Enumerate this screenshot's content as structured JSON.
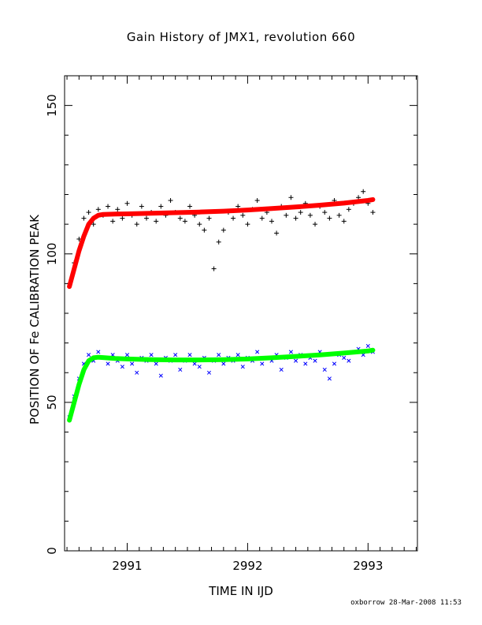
{
  "footer": "oxborrow 28-Mar-2008 11:53",
  "chart_data": {
    "type": "scatter",
    "title": "Gain History of JMX1, revolution 660",
    "xlabel": "TIME IN IJD",
    "ylabel": "POSITION OF Fe CALIBRATION PEAK",
    "xlim": [
      2990.48,
      2993.41
    ],
    "ylim": [
      0,
      160
    ],
    "xticks": [
      2991,
      2992,
      2993
    ],
    "yticks": [
      0,
      50,
      100,
      150
    ],
    "grid": false,
    "series": [
      {
        "marker": "plus",
        "color": "#000000",
        "x": [
          2990.52,
          2990.56,
          2990.6,
          2990.64,
          2990.68,
          2990.72,
          2990.76,
          2990.8,
          2990.84,
          2990.88,
          2990.92,
          2990.96,
          2991.0,
          2991.04,
          2991.08,
          2991.12,
          2991.16,
          2991.2,
          2991.24,
          2991.28,
          2991.32,
          2991.36,
          2991.4,
          2991.44,
          2991.48,
          2991.52,
          2991.56,
          2991.6,
          2991.64,
          2991.68,
          2991.72,
          2991.76,
          2991.8,
          2991.84,
          2991.88,
          2991.92,
          2991.96,
          2992.0,
          2992.04,
          2992.08,
          2992.12,
          2992.16,
          2992.2,
          2992.24,
          2992.28,
          2992.32,
          2992.36,
          2992.4,
          2992.44,
          2992.48,
          2992.52,
          2992.56,
          2992.6,
          2992.64,
          2992.68,
          2992.72,
          2992.76,
          2992.8,
          2992.84,
          2992.88,
          2992.92,
          2992.96,
          2993.0,
          2993.04
        ],
        "y": [
          90,
          97,
          105,
          112,
          114,
          110,
          115,
          113,
          116,
          111,
          115,
          112,
          117,
          113,
          110,
          116,
          112,
          114,
          111,
          116,
          113,
          118,
          114,
          112,
          111,
          116,
          113,
          110,
          108,
          112,
          95,
          104,
          108,
          114,
          112,
          116,
          113,
          110,
          115,
          118,
          112,
          114,
          111,
          107,
          116,
          113,
          119,
          112,
          114,
          117,
          113,
          110,
          116,
          114,
          112,
          118,
          113,
          111,
          115,
          117,
          119,
          121,
          117,
          114
        ]
      },
      {
        "marker": "cross",
        "color": "#0000ff",
        "x": [
          2990.52,
          2990.56,
          2990.6,
          2990.64,
          2990.68,
          2990.72,
          2990.76,
          2990.8,
          2990.84,
          2990.88,
          2990.92,
          2990.96,
          2991.0,
          2991.04,
          2991.08,
          2991.12,
          2991.16,
          2991.2,
          2991.24,
          2991.28,
          2991.32,
          2991.36,
          2991.4,
          2991.44,
          2991.48,
          2991.52,
          2991.56,
          2991.6,
          2991.64,
          2991.68,
          2991.72,
          2991.76,
          2991.8,
          2991.84,
          2991.88,
          2991.92,
          2991.96,
          2992.0,
          2992.04,
          2992.08,
          2992.12,
          2992.16,
          2992.2,
          2992.24,
          2992.28,
          2992.32,
          2992.36,
          2992.4,
          2992.44,
          2992.48,
          2992.52,
          2992.56,
          2992.6,
          2992.64,
          2992.68,
          2992.72,
          2992.76,
          2992.8,
          2992.84,
          2992.88,
          2992.92,
          2992.96,
          2993.0,
          2993.04
        ],
        "y": [
          45,
          52,
          58,
          63,
          66,
          64,
          67,
          65,
          63,
          66,
          64,
          62,
          66,
          63,
          60,
          65,
          64,
          66,
          63,
          59,
          65,
          64,
          66,
          61,
          64,
          66,
          63,
          62,
          65,
          60,
          64,
          66,
          63,
          65,
          64,
          66,
          62,
          65,
          64,
          67,
          63,
          65,
          64,
          66,
          61,
          65,
          67,
          64,
          66,
          63,
          65,
          64,
          67,
          61,
          58,
          63,
          66,
          65,
          64,
          67,
          68,
          66,
          69,
          67
        ]
      },
      {
        "name": "",
        "type": "line",
        "color": "#ff0000",
        "x": [
          2990.52,
          2990.56,
          2990.6,
          2990.64,
          2990.68,
          2990.72,
          2990.76,
          2990.8,
          2990.9,
          2991.0,
          2991.2,
          2991.4,
          2991.6,
          2991.8,
          2992.0,
          2992.2,
          2992.4,
          2992.6,
          2992.8,
          2993.0,
          2993.04
        ],
        "y": [
          89,
          95,
          101,
          106,
          110,
          112,
          113,
          113.3,
          113.4,
          113.5,
          113.7,
          113.9,
          114.1,
          114.4,
          114.8,
          115.3,
          115.8,
          116.4,
          117.1,
          118,
          118.3
        ]
      },
      {
        "type": "line",
        "color": "#00ff00",
        "x": [
          2990.52,
          2990.56,
          2990.6,
          2990.64,
          2990.68,
          2990.72,
          2990.76,
          2990.8,
          2990.9,
          2991.0,
          2991.2,
          2991.4,
          2991.6,
          2991.8,
          2992.0,
          2992.2,
          2992.4,
          2992.6,
          2992.8,
          2993.0,
          2993.04
        ],
        "y": [
          44,
          50,
          56,
          61,
          64,
          65,
          65.2,
          65.1,
          64.8,
          64.6,
          64.4,
          64.3,
          64.3,
          64.4,
          64.6,
          65,
          65.5,
          66,
          66.6,
          67.3,
          67.6
        ]
      }
    ]
  }
}
